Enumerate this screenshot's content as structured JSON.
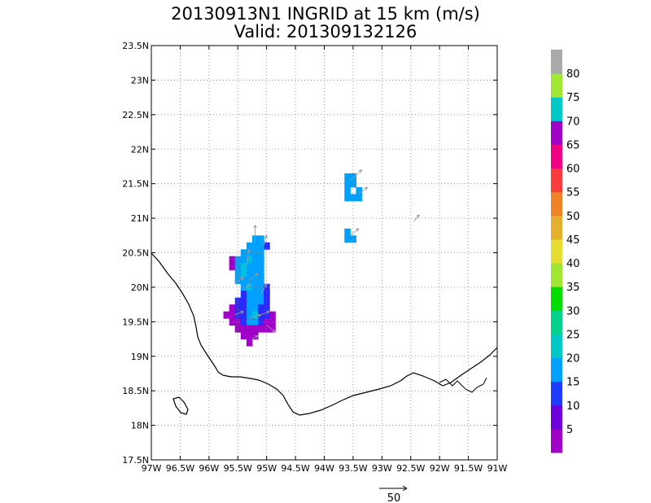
{
  "chart_data": {
    "type": "heatmap",
    "title": "20130913N1 INGRID at 15 km (m/s)",
    "subtitle": "Valid: 201309132126",
    "xlim": [
      -97,
      -91
    ],
    "ylim": [
      17.5,
      23.5
    ],
    "x_ticks": [
      {
        "value": -97,
        "label": "97W"
      },
      {
        "value": -96.5,
        "label": "96.5W"
      },
      {
        "value": -96,
        "label": "96W"
      },
      {
        "value": -95.5,
        "label": "95.5W"
      },
      {
        "value": -95,
        "label": "95W"
      },
      {
        "value": -94.5,
        "label": "94.5W"
      },
      {
        "value": -94,
        "label": "94W"
      },
      {
        "value": -93.5,
        "label": "93.5W"
      },
      {
        "value": -93,
        "label": "93W"
      },
      {
        "value": -92.5,
        "label": "92.5W"
      },
      {
        "value": -92,
        "label": "92W"
      },
      {
        "value": -91.5,
        "label": "91.5W"
      },
      {
        "value": -91,
        "label": "91W"
      }
    ],
    "y_ticks": [
      {
        "value": 17.5,
        "label": "17.5N"
      },
      {
        "value": 18,
        "label": "18N"
      },
      {
        "value": 18.5,
        "label": "18.5N"
      },
      {
        "value": 19,
        "label": "19N"
      },
      {
        "value": 19.5,
        "label": "19.5N"
      },
      {
        "value": 20,
        "label": "20N"
      },
      {
        "value": 20.5,
        "label": "20.5N"
      },
      {
        "value": 21,
        "label": "21N"
      },
      {
        "value": 21.5,
        "label": "21.5N"
      },
      {
        "value": 22,
        "label": "22N"
      },
      {
        "value": 22.5,
        "label": "22.5N"
      },
      {
        "value": 23,
        "label": "23N"
      },
      {
        "value": 23.5,
        "label": "23.5N"
      }
    ],
    "grid": true,
    "colorbar": {
      "labels": [
        "5",
        "10",
        "15",
        "20",
        "25",
        "30",
        "35",
        "40",
        "45",
        "50",
        "55",
        "60",
        "65",
        "70",
        "75",
        "80"
      ],
      "colors": [
        "#a000c8",
        "#6e00dc",
        "#1e3cff",
        "#00a0ff",
        "#00c8c8",
        "#00d28c",
        "#00dc00",
        "#a0e632",
        "#e6dc32",
        "#e6af2d",
        "#f08228",
        "#fa3c3c",
        "#f00082",
        "#a000c8",
        "#00c8c8",
        "#a0e632",
        "#aaaaaa"
      ]
    },
    "cell_size_deg": 0.1,
    "cells": [
      [
        -93.5,
        21.6,
        15
      ],
      [
        -93.6,
        21.6,
        15
      ],
      [
        -93.6,
        21.5,
        15
      ],
      [
        -93.5,
        21.5,
        15
      ],
      [
        -93.6,
        21.4,
        15
      ],
      [
        -93.6,
        21.3,
        15
      ],
      [
        -93.5,
        21.3,
        15
      ],
      [
        -93.4,
        21.3,
        15
      ],
      [
        -93.4,
        21.4,
        15
      ],
      [
        -93.6,
        20.8,
        15
      ],
      [
        -93.6,
        20.7,
        15
      ],
      [
        -93.5,
        20.7,
        15
      ],
      [
        -95.1,
        20.7,
        15
      ],
      [
        -95.2,
        20.7,
        15
      ],
      [
        -95.0,
        20.6,
        10
      ],
      [
        -95.1,
        20.6,
        15
      ],
      [
        -95.2,
        20.6,
        15
      ],
      [
        -95.3,
        20.6,
        15
      ],
      [
        -95.1,
        20.5,
        15
      ],
      [
        -95.2,
        20.5,
        15
      ],
      [
        -95.3,
        20.5,
        15
      ],
      [
        -95.4,
        20.5,
        15
      ],
      [
        -95.6,
        20.4,
        5
      ],
      [
        -95.5,
        20.4,
        15
      ],
      [
        -95.4,
        20.4,
        15
      ],
      [
        -95.3,
        20.4,
        18
      ],
      [
        -95.2,
        20.4,
        15
      ],
      [
        -95.1,
        20.4,
        15
      ],
      [
        -95.6,
        20.3,
        5
      ],
      [
        -95.5,
        20.3,
        15
      ],
      [
        -95.4,
        20.3,
        18
      ],
      [
        -95.3,
        20.3,
        15
      ],
      [
        -95.2,
        20.3,
        15
      ],
      [
        -95.1,
        20.3,
        15
      ],
      [
        -95.5,
        20.2,
        15
      ],
      [
        -95.4,
        20.2,
        18
      ],
      [
        -95.3,
        20.2,
        15
      ],
      [
        -95.2,
        20.2,
        15
      ],
      [
        -95.1,
        20.2,
        15
      ],
      [
        -95.5,
        20.1,
        15
      ],
      [
        -95.4,
        20.1,
        15
      ],
      [
        -95.3,
        20.1,
        15
      ],
      [
        -95.2,
        20.1,
        15
      ],
      [
        -95.1,
        20.1,
        15
      ],
      [
        -95.4,
        20.0,
        15
      ],
      [
        -95.3,
        20.0,
        18
      ],
      [
        -95.2,
        20.0,
        15
      ],
      [
        -95.1,
        20.0,
        15
      ],
      [
        -95.0,
        20.0,
        10
      ],
      [
        -95.4,
        19.9,
        10
      ],
      [
        -95.3,
        19.9,
        15
      ],
      [
        -95.2,
        19.9,
        15
      ],
      [
        -95.1,
        19.9,
        15
      ],
      [
        -95.0,
        19.9,
        10
      ],
      [
        -95.5,
        19.8,
        10
      ],
      [
        -95.4,
        19.8,
        10
      ],
      [
        -95.3,
        19.8,
        15
      ],
      [
        -95.2,
        19.8,
        15
      ],
      [
        -95.1,
        19.8,
        15
      ],
      [
        -95.0,
        19.8,
        10
      ],
      [
        -95.6,
        19.7,
        5
      ],
      [
        -95.5,
        19.7,
        10
      ],
      [
        -95.4,
        19.7,
        10
      ],
      [
        -95.3,
        19.7,
        15
      ],
      [
        -95.2,
        19.7,
        15
      ],
      [
        -95.1,
        19.7,
        10
      ],
      [
        -95.0,
        19.7,
        10
      ],
      [
        -95.7,
        19.6,
        5
      ],
      [
        -95.6,
        19.6,
        5
      ],
      [
        -95.5,
        19.6,
        10
      ],
      [
        -95.4,
        19.6,
        10
      ],
      [
        -95.3,
        19.6,
        15
      ],
      [
        -95.2,
        19.6,
        18
      ],
      [
        -95.1,
        19.6,
        10
      ],
      [
        -95.0,
        19.6,
        10
      ],
      [
        -94.9,
        19.6,
        5
      ],
      [
        -95.6,
        19.5,
        5
      ],
      [
        -95.5,
        19.5,
        5
      ],
      [
        -95.4,
        19.5,
        10
      ],
      [
        -95.3,
        19.5,
        15
      ],
      [
        -95.2,
        19.5,
        15
      ],
      [
        -95.1,
        19.5,
        10
      ],
      [
        -95.0,
        19.5,
        5
      ],
      [
        -94.9,
        19.5,
        5
      ],
      [
        -95.5,
        19.4,
        5
      ],
      [
        -95.4,
        19.4,
        5
      ],
      [
        -95.3,
        19.4,
        5
      ],
      [
        -95.2,
        19.4,
        5
      ],
      [
        -95.1,
        19.4,
        5
      ],
      [
        -95.0,
        19.4,
        5
      ],
      [
        -94.9,
        19.4,
        5
      ],
      [
        -95.4,
        19.3,
        5
      ],
      [
        -95.3,
        19.3,
        5
      ],
      [
        -95.2,
        19.3,
        5
      ],
      [
        -95.3,
        19.2,
        5
      ]
    ],
    "vectors": [
      [
        -93.55,
        21.55,
        0.2,
        0.15
      ],
      [
        -93.4,
        21.35,
        0.15,
        0.1
      ],
      [
        -93.55,
        20.75,
        0.15,
        0.1
      ],
      [
        -92.45,
        20.95,
        0.1,
        0.1
      ],
      [
        -95.2,
        20.65,
        0,
        0.25
      ],
      [
        -95.05,
        20.6,
        0.05,
        0.15
      ],
      [
        -95.35,
        20.3,
        0.05,
        0.25
      ],
      [
        -95.3,
        20.1,
        0.15,
        0.1
      ],
      [
        -95.55,
        20.05,
        0.15,
        0.1
      ],
      [
        -95.4,
        19.95,
        0.1,
        0.1
      ],
      [
        -95.1,
        19.9,
        0.1,
        0.15
      ],
      [
        -95.55,
        19.6,
        0.15,
        0.05
      ],
      [
        -95.3,
        19.55,
        0.2,
        0.05
      ],
      [
        -95.1,
        19.6,
        0.15,
        0.05
      ],
      [
        -95.0,
        19.45,
        0.15,
        -0.1
      ],
      [
        -95.25,
        19.25,
        0.1,
        0.05
      ]
    ],
    "reference_vector": {
      "label": "50"
    }
  }
}
